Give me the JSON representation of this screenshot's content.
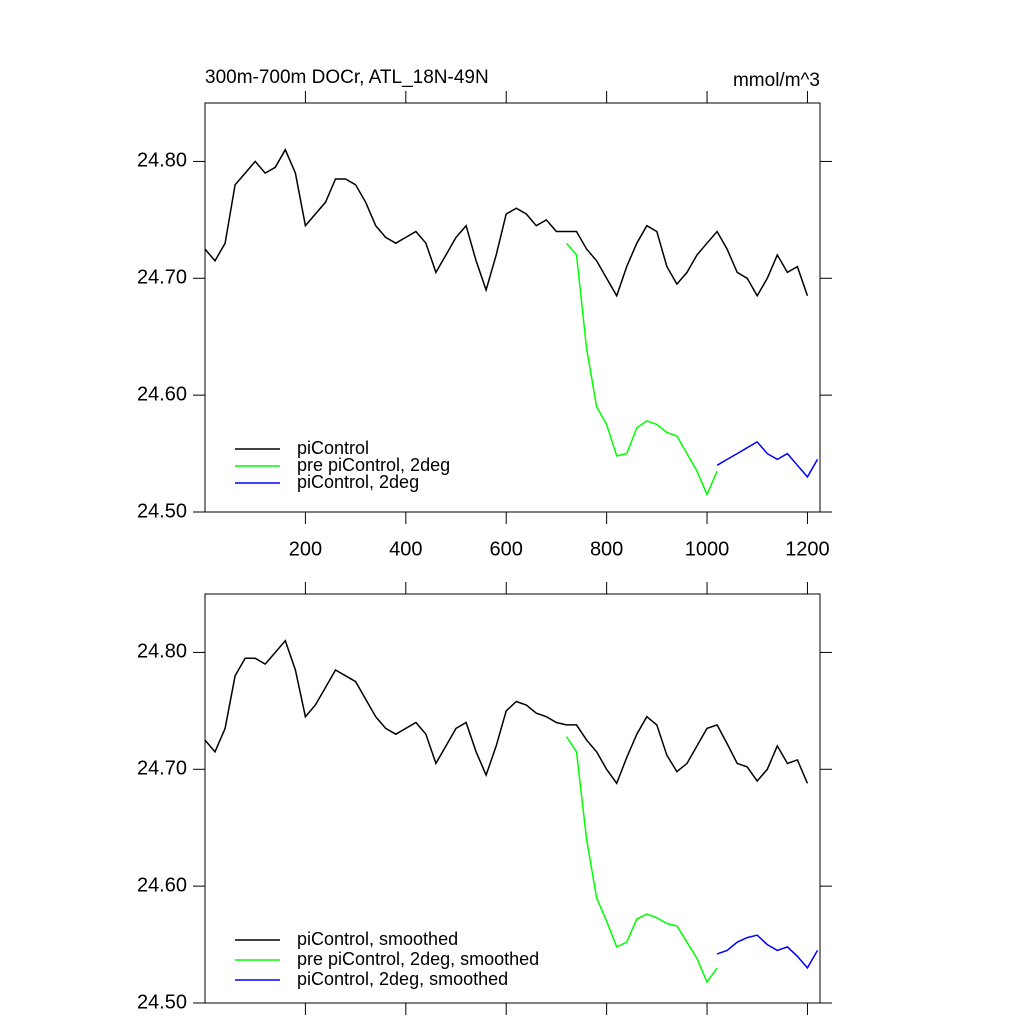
{
  "chart_data": [
    {
      "type": "line",
      "title": "300m-700m DOCr, ATL_18N-49N",
      "units": "mmol/m^3",
      "xlim": [
        0,
        1225
      ],
      "ylim": [
        24.5,
        24.85
      ],
      "xticks": [
        200,
        400,
        600,
        800,
        1000,
        1200
      ],
      "yticks": [
        {
          "value": 24.5,
          "label": "24.50"
        },
        {
          "value": 24.6,
          "label": "24.60"
        },
        {
          "value": 24.7,
          "label": "24.70"
        },
        {
          "value": 24.8,
          "label": "24.80"
        }
      ],
      "legend": "lower left",
      "series": [
        {
          "name": "piControl",
          "color": "#000000",
          "x": [
            0,
            20,
            40,
            60,
            80,
            100,
            120,
            140,
            160,
            180,
            200,
            220,
            240,
            260,
            280,
            300,
            320,
            340,
            360,
            380,
            400,
            420,
            440,
            460,
            480,
            500,
            520,
            540,
            560,
            580,
            600,
            620,
            640,
            660,
            680,
            700,
            720,
            740,
            760,
            780,
            800,
            820,
            840,
            860,
            880,
            900,
            920,
            940,
            960,
            980,
            1000,
            1020,
            1040,
            1060,
            1080,
            1100,
            1120,
            1140,
            1160,
            1180,
            1200
          ],
          "values": [
            24.725,
            24.715,
            24.73,
            24.78,
            24.79,
            24.8,
            24.79,
            24.795,
            24.81,
            24.79,
            24.745,
            24.755,
            24.765,
            24.785,
            24.785,
            24.78,
            24.765,
            24.745,
            24.735,
            24.73,
            24.735,
            24.74,
            24.73,
            24.705,
            24.72,
            24.735,
            24.745,
            24.715,
            24.69,
            24.72,
            24.755,
            24.76,
            24.755,
            24.745,
            24.75,
            24.74,
            24.74,
            24.74,
            24.725,
            24.715,
            24.7,
            24.685,
            24.71,
            24.73,
            24.745,
            24.74,
            24.71,
            24.695,
            24.705,
            24.72,
            24.73,
            24.74,
            24.725,
            24.705,
            24.7,
            24.685,
            24.7,
            24.72,
            24.705,
            24.71,
            24.685
          ]
        },
        {
          "name": "pre piControl, 2deg",
          "color": "#00ff00",
          "x": [
            720,
            740,
            760,
            780,
            800,
            820,
            840,
            860,
            880,
            900,
            920,
            940,
            960,
            980,
            1000,
            1020
          ],
          "values": [
            24.73,
            24.72,
            24.64,
            24.59,
            24.575,
            24.548,
            24.55,
            24.572,
            24.578,
            24.575,
            24.568,
            24.565,
            24.55,
            24.535,
            24.515,
            24.535
          ]
        },
        {
          "name": "piControl, 2deg",
          "color": "#0000ff",
          "x": [
            1020,
            1040,
            1060,
            1080,
            1100,
            1120,
            1140,
            1160,
            1180,
            1200,
            1220
          ],
          "values": [
            24.54,
            24.545,
            24.55,
            24.555,
            24.56,
            24.55,
            24.545,
            24.55,
            24.54,
            24.53,
            24.545
          ]
        }
      ]
    },
    {
      "type": "line",
      "xlim": [
        0,
        1225
      ],
      "ylim": [
        24.5,
        24.85
      ],
      "xticks": [
        200,
        400,
        600,
        800,
        1000,
        1200
      ],
      "yticks": [
        {
          "value": 24.5,
          "label": "24.50"
        },
        {
          "value": 24.6,
          "label": "24.60"
        },
        {
          "value": 24.7,
          "label": "24.70"
        },
        {
          "value": 24.8,
          "label": "24.80"
        }
      ],
      "legend": "lower left",
      "series": [
        {
          "name": "piControl, smoothed",
          "color": "#000000",
          "x": [
            0,
            20,
            40,
            60,
            80,
            100,
            120,
            140,
            160,
            180,
            200,
            220,
            240,
            260,
            280,
            300,
            320,
            340,
            360,
            380,
            400,
            420,
            440,
            460,
            480,
            500,
            520,
            540,
            560,
            580,
            600,
            620,
            640,
            660,
            680,
            700,
            720,
            740,
            760,
            780,
            800,
            820,
            840,
            860,
            880,
            900,
            920,
            940,
            960,
            980,
            1000,
            1020,
            1040,
            1060,
            1080,
            1100,
            1120,
            1140,
            1160,
            1180,
            1200
          ],
          "values": [
            24.725,
            24.715,
            24.735,
            24.78,
            24.795,
            24.795,
            24.79,
            24.8,
            24.81,
            24.785,
            24.745,
            24.755,
            24.77,
            24.785,
            24.78,
            24.775,
            24.76,
            24.745,
            24.735,
            24.73,
            24.735,
            24.74,
            24.73,
            24.705,
            24.72,
            24.735,
            24.74,
            24.715,
            24.695,
            24.72,
            24.75,
            24.758,
            24.755,
            24.748,
            24.745,
            24.74,
            24.738,
            24.738,
            24.725,
            24.715,
            24.7,
            24.688,
            24.71,
            24.73,
            24.745,
            24.738,
            24.712,
            24.698,
            24.705,
            24.72,
            24.735,
            24.738,
            24.722,
            24.705,
            24.702,
            24.69,
            24.7,
            24.72,
            24.705,
            24.708,
            24.688
          ]
        },
        {
          "name": "pre piControl, 2deg, smoothed",
          "color": "#00ff00",
          "x": [
            720,
            740,
            760,
            780,
            800,
            820,
            840,
            860,
            880,
            900,
            920,
            940,
            960,
            980,
            1000,
            1020
          ],
          "values": [
            24.728,
            24.715,
            24.64,
            24.59,
            24.57,
            24.548,
            24.552,
            24.572,
            24.576,
            24.573,
            24.568,
            24.566,
            24.552,
            24.538,
            24.518,
            24.53
          ]
        },
        {
          "name": "piControl, 2deg, smoothed",
          "color": "#0000ff",
          "x": [
            1020,
            1040,
            1060,
            1080,
            1100,
            1120,
            1140,
            1160,
            1180,
            1200,
            1220
          ],
          "values": [
            24.542,
            24.545,
            24.552,
            24.556,
            24.558,
            24.55,
            24.545,
            24.548,
            24.54,
            24.53,
            24.545
          ]
        }
      ]
    }
  ]
}
